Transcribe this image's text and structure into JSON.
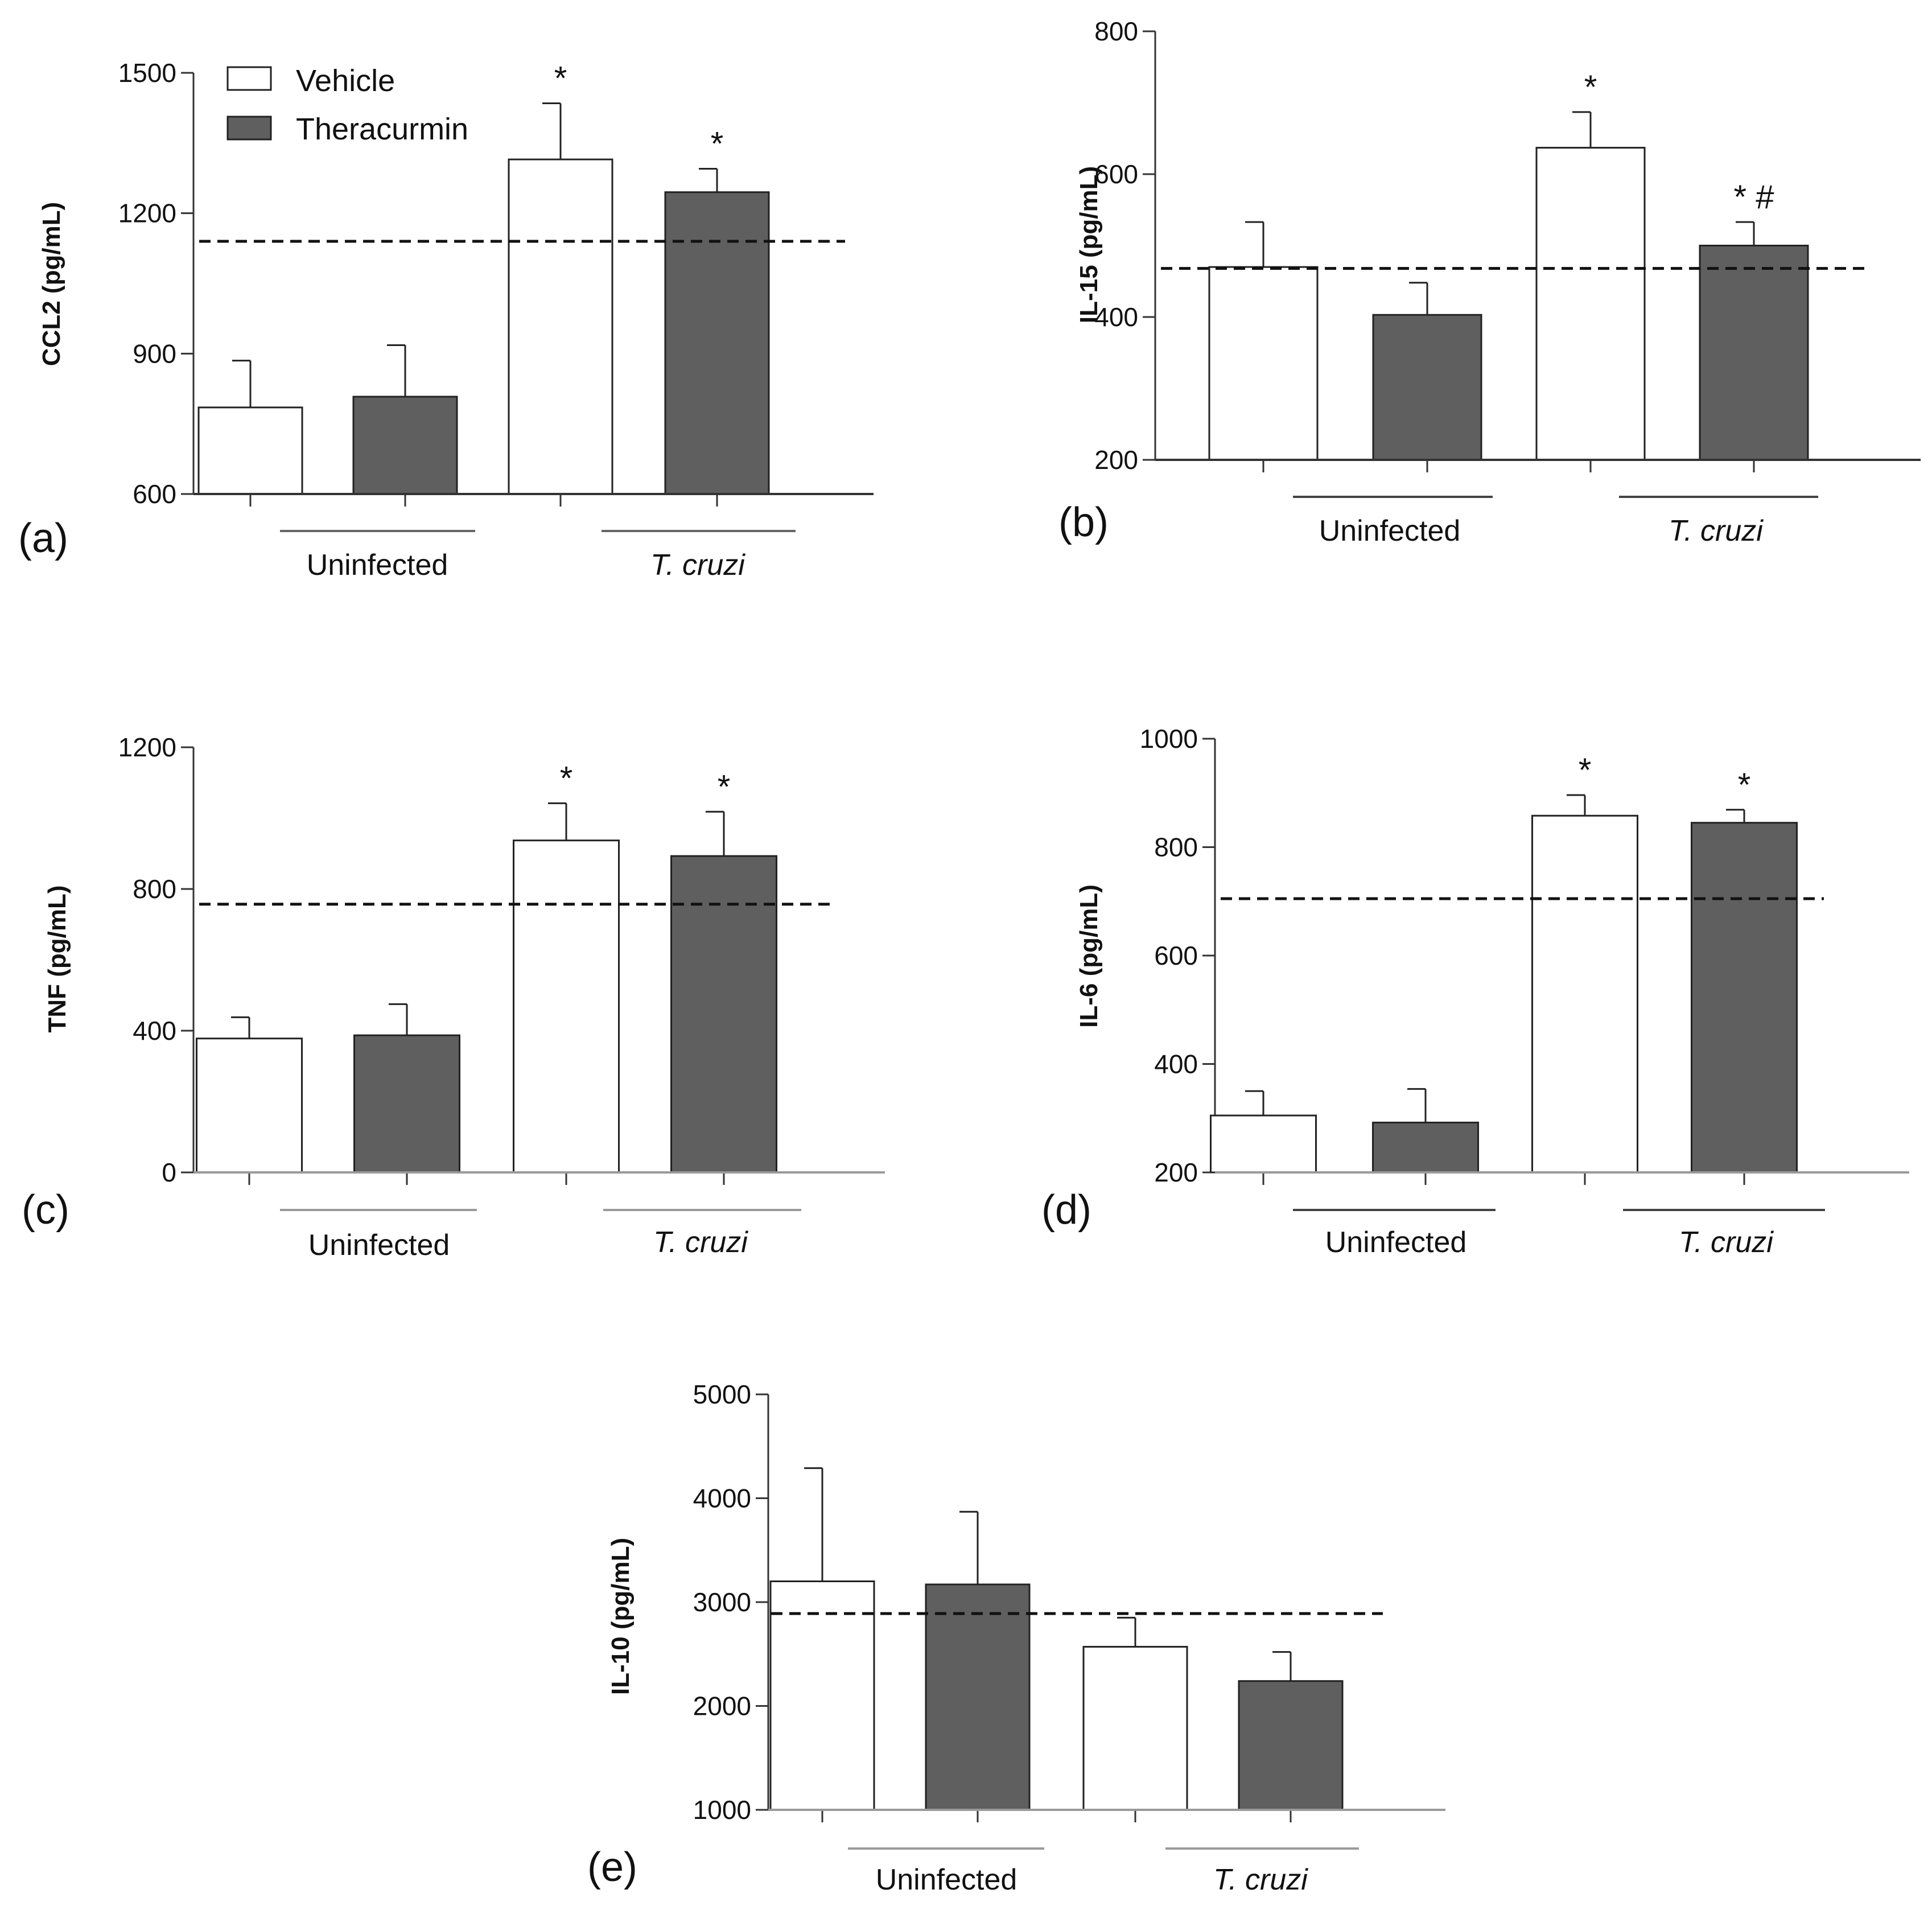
{
  "figure": {
    "legend": {
      "entries": [
        {
          "label": "Vehicle",
          "color": "#ffffff"
        },
        {
          "label": "Theracurmin",
          "color": "#5f5f5f"
        }
      ]
    },
    "groups": [
      "Uninfected",
      "T. cruzi"
    ]
  },
  "chart_data": [
    {
      "panel": "(a)",
      "type": "bar",
      "ylabel": "CCL2 (pg/mL)",
      "ylim": [
        600,
        1500
      ],
      "yticks": [
        600,
        900,
        1200,
        1500
      ],
      "groups": [
        "Uninfected",
        "T. cruzi"
      ],
      "series": [
        {
          "name": "Vehicle",
          "values": [
            785,
            1315
          ],
          "errors": [
            100,
            120
          ]
        },
        {
          "name": "Theracurmin",
          "values": [
            808,
            1245
          ],
          "errors": [
            110,
            50
          ]
        }
      ],
      "reference_line": 1140,
      "annotations": [
        {
          "group": 1,
          "series": 0,
          "text": "*"
        },
        {
          "group": 1,
          "series": 1,
          "text": "*"
        }
      ]
    },
    {
      "panel": "(b)",
      "type": "bar",
      "ylabel": "IL-15 (pg/mL)",
      "ylim": [
        200,
        800
      ],
      "yticks": [
        200,
        400,
        600,
        800
      ],
      "groups": [
        "Uninfected",
        "T. cruzi"
      ],
      "series": [
        {
          "name": "Vehicle",
          "values": [
            470,
            637
          ],
          "errors": [
            63,
            50
          ]
        },
        {
          "name": "Theracurmin",
          "values": [
            403,
            500
          ],
          "errors": [
            45,
            33
          ]
        }
      ],
      "reference_line": 468,
      "annotations": [
        {
          "group": 1,
          "series": 0,
          "text": "*"
        },
        {
          "group": 1,
          "series": 1,
          "text": "*  #"
        }
      ]
    },
    {
      "panel": "(c)",
      "type": "bar",
      "ylabel": "TNF (pg/mL)",
      "ylim": [
        0,
        1200
      ],
      "yticks": [
        0,
        400,
        800,
        1200
      ],
      "groups": [
        "Uninfected",
        "T. cruzi"
      ],
      "series": [
        {
          "name": "Vehicle",
          "values": [
            378,
            937
          ],
          "errors": [
            60,
            105
          ]
        },
        {
          "name": "Theracurmin",
          "values": [
            387,
            893
          ],
          "errors": [
            88,
            125
          ]
        }
      ],
      "reference_line": 757,
      "annotations": [
        {
          "group": 1,
          "series": 0,
          "text": "*"
        },
        {
          "group": 1,
          "series": 1,
          "text": "*"
        }
      ]
    },
    {
      "panel": "(d)",
      "type": "bar",
      "ylabel": "IL-6 (pg/mL)",
      "ylim": [
        200,
        1000
      ],
      "yticks": [
        200,
        400,
        600,
        800,
        1000
      ],
      "groups": [
        "Uninfected",
        "T. cruzi"
      ],
      "series": [
        {
          "name": "Vehicle",
          "values": [
            305,
            858
          ],
          "errors": [
            45,
            38
          ]
        },
        {
          "name": "Theracurmin",
          "values": [
            292,
            845
          ],
          "errors": [
            62,
            24
          ]
        }
      ],
      "reference_line": 705,
      "annotations": [
        {
          "group": 1,
          "series": 0,
          "text": "*"
        },
        {
          "group": 1,
          "series": 1,
          "text": "*"
        }
      ]
    },
    {
      "panel": "(e)",
      "type": "bar",
      "ylabel": "IL-10 (pg/mL)",
      "ylim": [
        1000,
        5000
      ],
      "yticks": [
        1000,
        2000,
        3000,
        4000,
        5000
      ],
      "groups": [
        "Uninfected",
        "T. cruzi"
      ],
      "series": [
        {
          "name": "Vehicle",
          "values": [
            3200,
            2570
          ],
          "errors": [
            1090,
            280
          ]
        },
        {
          "name": "Theracurmin",
          "values": [
            3170,
            2240
          ],
          "errors": [
            700,
            280
          ]
        }
      ],
      "reference_line": 2890,
      "annotations": []
    }
  ]
}
